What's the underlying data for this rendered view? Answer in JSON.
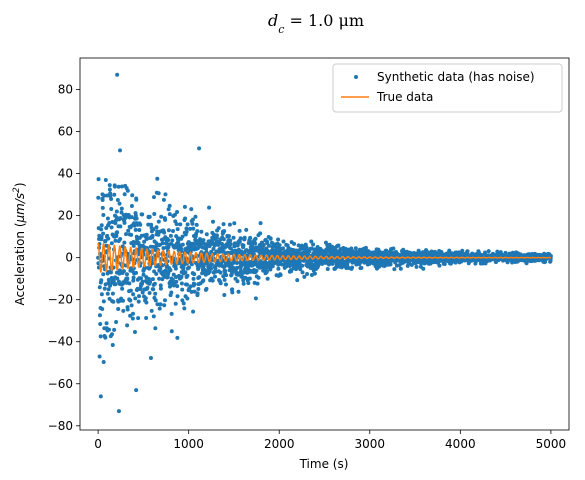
{
  "chart_data": {
    "type": "scatter",
    "title": "d_c = 1.0 μm",
    "title_parts": {
      "symbol": "d",
      "subscript": "c",
      "rest": " = 1.0 μm"
    },
    "xlabel": "Time (s)",
    "ylabel_parts": {
      "prefix": "Acceleration (",
      "unit": "μm/s",
      "sup": "2",
      "suffix": ")"
    },
    "xlim": [
      -200,
      5200
    ],
    "ylim": [
      -82,
      95
    ],
    "xticks": [
      0,
      1000,
      2000,
      3000,
      4000,
      5000
    ],
    "yticks": [
      -80,
      -60,
      -40,
      -20,
      0,
      20,
      40,
      60,
      80
    ],
    "grid": false,
    "legend_position": "top-right",
    "series": [
      {
        "name": "Synthetic data (has noise)",
        "kind": "scatter",
        "color": "#1f77b4",
        "x_range": [
          0,
          5000
        ],
        "point_count": 3000,
        "noise_std_at_start": 22,
        "noise_decay_time": 1100,
        "note_points": [
          {
            "x": 210,
            "y": 87
          },
          {
            "x": 1115,
            "y": 52
          },
          {
            "x": 230,
            "y": -73
          },
          {
            "x": 420,
            "y": -63
          },
          {
            "x": 30,
            "y": -66
          }
        ]
      },
      {
        "name": "True data",
        "kind": "line",
        "color": "#ff7f0e",
        "equation": "y = 7 * exp(-t / 1000) * cos(2π t / 60)",
        "amplitude": 7,
        "decay_time": 1000,
        "period": 60,
        "x_range": [
          0,
          5000
        ]
      }
    ]
  }
}
